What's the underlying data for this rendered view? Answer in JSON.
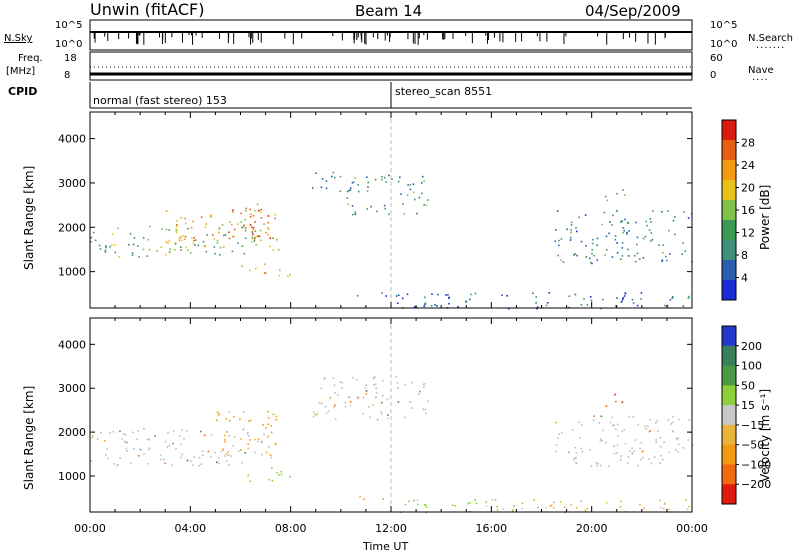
{
  "header": {
    "station": "Unwin (fitACF)",
    "beam": "Beam 14",
    "date": "04/Sep/2009"
  },
  "status_panels": {
    "nsky_label": "N.Sky",
    "nsearch_label": "N.Search",
    "freq_label_top": "Freq.",
    "freq_label_unit": "[MHz]",
    "nave_label": "Nave",
    "cpid_label": "CPID",
    "nsky_ticks": [
      "10^5",
      "10^0"
    ],
    "nsearch_ticks": [
      "10^5",
      "10^0"
    ],
    "freq_ticks": [
      "18",
      "8"
    ],
    "nave_ticks": [
      "60",
      "0"
    ],
    "cpid_segments": [
      {
        "label": "normal (fast stereo) 153",
        "start_hour": 0
      },
      {
        "label": "stereo_scan 8551",
        "start_hour": 12
      }
    ]
  },
  "colors": {
    "power_scale": [
      "#1a2bd6",
      "#2a5fb0",
      "#3f8f7a",
      "#3a9a55",
      "#7fc24a",
      "#e8c21a",
      "#f39a12",
      "#e8600f",
      "#d81b0e"
    ],
    "velocity_scale": [
      "#2138c8",
      "#3a7f5a",
      "#4a9a45",
      "#8ccf3a",
      "#c8c8c8",
      "#e8b43a",
      "#f39a12",
      "#ef6a10",
      "#e11a0e"
    ],
    "ground_scatter": "#bdbdbd"
  },
  "chart_data": [
    {
      "type": "heatmap",
      "title": "",
      "xlabel": "Time UT",
      "ylabel": "Slant Range [km]",
      "xlim_hours": [
        0,
        24
      ],
      "ylim": [
        180,
        4600
      ],
      "x_tick_labels": [
        "00:00",
        "04:00",
        "08:00",
        "12:00",
        "16:00",
        "20:00",
        "00:00"
      ],
      "y_tick_labels": [
        "1000",
        "2000",
        "3000",
        "4000"
      ],
      "y_ticks": [
        1000,
        2000,
        3000,
        4000
      ],
      "colorbar": {
        "label": "Power [dB]",
        "ticks": [
          "4",
          "8",
          "12",
          "16",
          "20",
          "24",
          "28"
        ],
        "range": [
          0,
          32
        ]
      },
      "regions": [
        {
          "t0": 0.0,
          "t1": 6.8,
          "r0": 1350,
          "r1": 2050,
          "level": 14
        },
        {
          "t0": 3.0,
          "t1": 7.5,
          "r0": 1500,
          "r1": 2400,
          "level": 22
        },
        {
          "t0": 5.5,
          "t1": 7.2,
          "r0": 1700,
          "r1": 2600,
          "level": 26
        },
        {
          "t0": 6.0,
          "t1": 8.0,
          "r0": 900,
          "r1": 1200,
          "level": 20
        },
        {
          "t0": 8.8,
          "t1": 10.5,
          "r0": 2800,
          "r1": 3300,
          "level": 8
        },
        {
          "t0": 10.2,
          "t1": 13.5,
          "r0": 2300,
          "r1": 3200,
          "level": 10
        },
        {
          "t0": 10.5,
          "t1": 11.8,
          "r0": 400,
          "r1": 550,
          "level": 8
        },
        {
          "t0": 12.0,
          "t1": 24.0,
          "r0": 180,
          "r1": 550,
          "level": 6
        },
        {
          "t0": 18.5,
          "t1": 24.0,
          "r0": 1200,
          "r1": 2400,
          "level": 9
        },
        {
          "t0": 20.5,
          "t1": 21.5,
          "r0": 2600,
          "r1": 2900,
          "level": 12
        }
      ]
    },
    {
      "type": "heatmap",
      "title": "",
      "xlabel": "Time UT",
      "ylabel": "Slant Range [km]",
      "xlim_hours": [
        0,
        24
      ],
      "ylim": [
        180,
        4600
      ],
      "x_tick_labels": [
        "00:00",
        "04:00",
        "08:00",
        "12:00",
        "16:00",
        "20:00",
        "00:00"
      ],
      "y_tick_labels": [
        "1000",
        "2000",
        "3000",
        "4000"
      ],
      "y_ticks": [
        1000,
        2000,
        3000,
        4000
      ],
      "colorbar": {
        "label": "Velocity [m s⁻¹]",
        "ticks": [
          "200",
          "100",
          "50",
          "15",
          "−15",
          "−50",
          "−100",
          "−200"
        ],
        "range": [
          -250,
          250
        ]
      },
      "regions": [
        {
          "t0": 0.0,
          "t1": 7.2,
          "r0": 1250,
          "r1": 2100,
          "level": 0,
          "gs": true
        },
        {
          "t0": 5.0,
          "t1": 7.5,
          "r0": 1500,
          "r1": 2500,
          "level": -60
        },
        {
          "t0": 6.0,
          "t1": 8.0,
          "r0": 900,
          "r1": 1200,
          "level": 40
        },
        {
          "t0": 8.8,
          "t1": 13.5,
          "r0": 2300,
          "r1": 3300,
          "level": 0,
          "gs": true
        },
        {
          "t0": 10.5,
          "t1": 11.8,
          "r0": 400,
          "r1": 550,
          "level": -40
        },
        {
          "t0": 12.0,
          "t1": 18.0,
          "r0": 180,
          "r1": 500,
          "level": 25
        },
        {
          "t0": 18.0,
          "t1": 24.0,
          "r0": 180,
          "r1": 500,
          "level": -30
        },
        {
          "t0": 18.5,
          "t1": 24.0,
          "r0": 1200,
          "r1": 2400,
          "level": 0,
          "gs": true
        },
        {
          "t0": 20.5,
          "t1": 21.3,
          "r0": 2600,
          "r1": 2900,
          "level": -200
        }
      ]
    }
  ]
}
